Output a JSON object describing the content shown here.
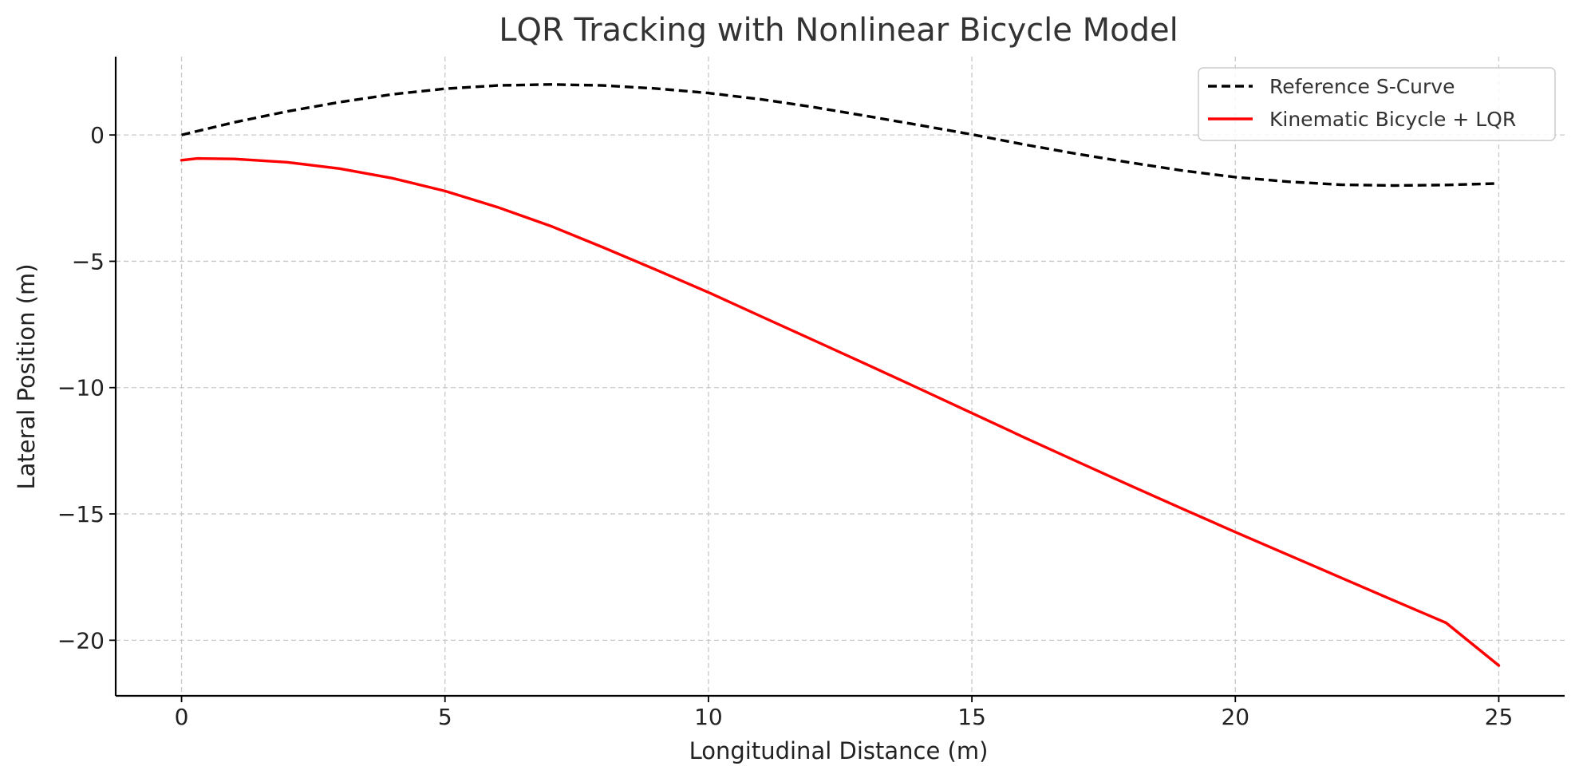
{
  "chart_data": {
    "type": "line",
    "title": "LQR Tracking with Nonlinear Bicycle Model",
    "xlabel": "Longitudinal Distance (m)",
    "ylabel": "Lateral Position (m)",
    "xlim": [
      -1.25,
      26.25
    ],
    "ylim": [
      -22.2,
      3.1
    ],
    "xticks": [
      0,
      5,
      10,
      15,
      20,
      25
    ],
    "xtick_labels": [
      "0",
      "5",
      "10",
      "15",
      "20",
      "25"
    ],
    "yticks": [
      0,
      -5,
      -10,
      -15,
      -20
    ],
    "ytick_labels": [
      "0",
      "−5",
      "−10",
      "−15",
      "−20"
    ],
    "grid": true,
    "legend_position": "top-right",
    "series": [
      {
        "name": "Reference S-Curve",
        "color": "#000000",
        "style": "dashed",
        "x": [
          0,
          1,
          2,
          3,
          4,
          5,
          6,
          7,
          8,
          9,
          10,
          11,
          12,
          13,
          14,
          15,
          16,
          17,
          18,
          19,
          20,
          21,
          22,
          23,
          24,
          25
        ],
        "y": [
          0,
          0.5,
          0.93,
          1.3,
          1.61,
          1.83,
          1.96,
          2.0,
          1.96,
          1.84,
          1.66,
          1.41,
          1.1,
          0.75,
          0.39,
          0.02,
          -0.38,
          -0.75,
          -1.09,
          -1.41,
          -1.67,
          -1.85,
          -1.97,
          -2.0,
          -1.98,
          -1.92
        ]
      },
      {
        "name": "Kinematic Bicycle + LQR",
        "color": "#ff0000",
        "style": "solid",
        "x": [
          0,
          0.3,
          1,
          2,
          3,
          4,
          5,
          6,
          7,
          8,
          9,
          10,
          11,
          12,
          13,
          14,
          15,
          16,
          17,
          18,
          19,
          20,
          21,
          22,
          23,
          24,
          25
        ],
        "y": [
          -1.0,
          -0.93,
          -0.95,
          -1.08,
          -1.33,
          -1.71,
          -2.22,
          -2.86,
          -3.6,
          -4.45,
          -5.33,
          -6.23,
          -7.18,
          -8.13,
          -9.08,
          -10.04,
          -11.01,
          -11.98,
          -12.93,
          -13.87,
          -14.8,
          -15.72,
          -16.62,
          -17.52,
          -18.42,
          -19.31,
          -21.0
        ]
      }
    ]
  }
}
